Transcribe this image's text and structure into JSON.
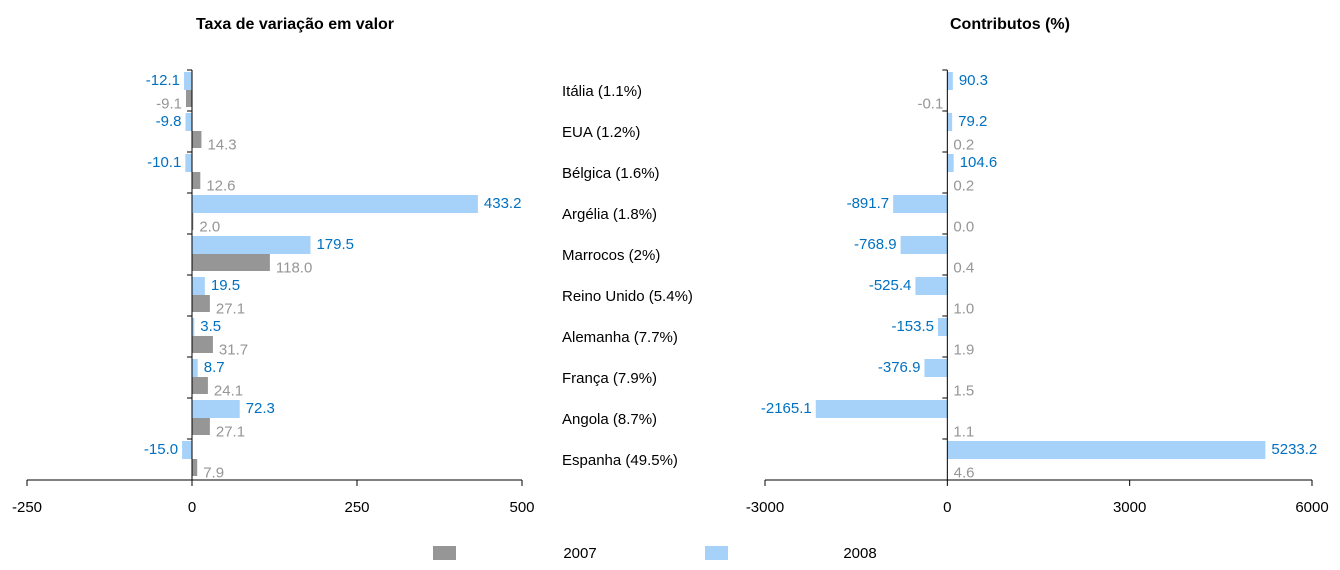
{
  "chart_data": [
    {
      "type": "bar",
      "orientation": "horizontal",
      "title": "Taxa de variação em valor",
      "categories": [
        "Itália (1.1%)",
        "EUA (1.2%)",
        "Bélgica (1.6%)",
        "Argélia (1.8%)",
        "Marrocos (2%)",
        "Reino Unido (5.4%)",
        "Alemanha (7.7%)",
        "França (7.9%)",
        "Angola (8.7%)",
        "Espanha (49.5%)"
      ],
      "series": [
        {
          "name": "2007",
          "color": "#969696",
          "label_color": "#969696",
          "values": [
            -9.1,
            14.3,
            12.6,
            2.0,
            118.0,
            27.1,
            31.7,
            24.1,
            27.1,
            7.9
          ],
          "value_labels": [
            "-9.1",
            "14.3",
            "12.6",
            "2.0",
            "118.0",
            "27.1",
            "31.7",
            "24.1",
            "27.1",
            "7.9"
          ]
        },
        {
          "name": "2008",
          "color": "#a6d2fa",
          "label_color": "#0070c0",
          "values": [
            -12.1,
            -9.8,
            -10.1,
            433.2,
            179.5,
            19.5,
            3.5,
            8.7,
            72.3,
            -15.0
          ],
          "value_labels": [
            "-12.1",
            "-9.8",
            "-10.1",
            "433.2",
            "179.5",
            "19.5",
            "3.5",
            "8.7",
            "72.3",
            "-15.0"
          ]
        }
      ],
      "xlim": [
        -250,
        500
      ],
      "xticks": [
        -250,
        0,
        250,
        500
      ]
    },
    {
      "type": "bar",
      "orientation": "horizontal",
      "title": "Contributos (%)",
      "series": [
        {
          "color": "#969696",
          "label_color": "#969696",
          "values": [
            -0.1,
            0.2,
            0.2,
            0.0,
            0.4,
            1.0,
            1.9,
            1.5,
            1.1,
            4.6
          ],
          "value_labels": [
            "-0.1",
            "0.2",
            "0.2",
            "0.0",
            "0.4",
            "1.0",
            "1.9",
            "1.5",
            "1.1",
            "4.6"
          ]
        },
        {
          "color": "#a6d2fa",
          "label_color": "#0070c0",
          "values": [
            90.3,
            79.2,
            104.6,
            -891.7,
            -768.9,
            -525.4,
            -153.5,
            -376.9,
            -2165.1,
            5233.2
          ],
          "value_labels": [
            "90.3",
            "79.2",
            "104.6",
            "-891.7",
            "-768.9",
            "-525.4",
            "-153.5",
            "-376.9",
            "-2165.1",
            "5233.2"
          ]
        }
      ],
      "xlim": [
        -3000,
        6000
      ],
      "xticks": [
        -3000,
        0,
        3000,
        6000
      ]
    }
  ]
}
